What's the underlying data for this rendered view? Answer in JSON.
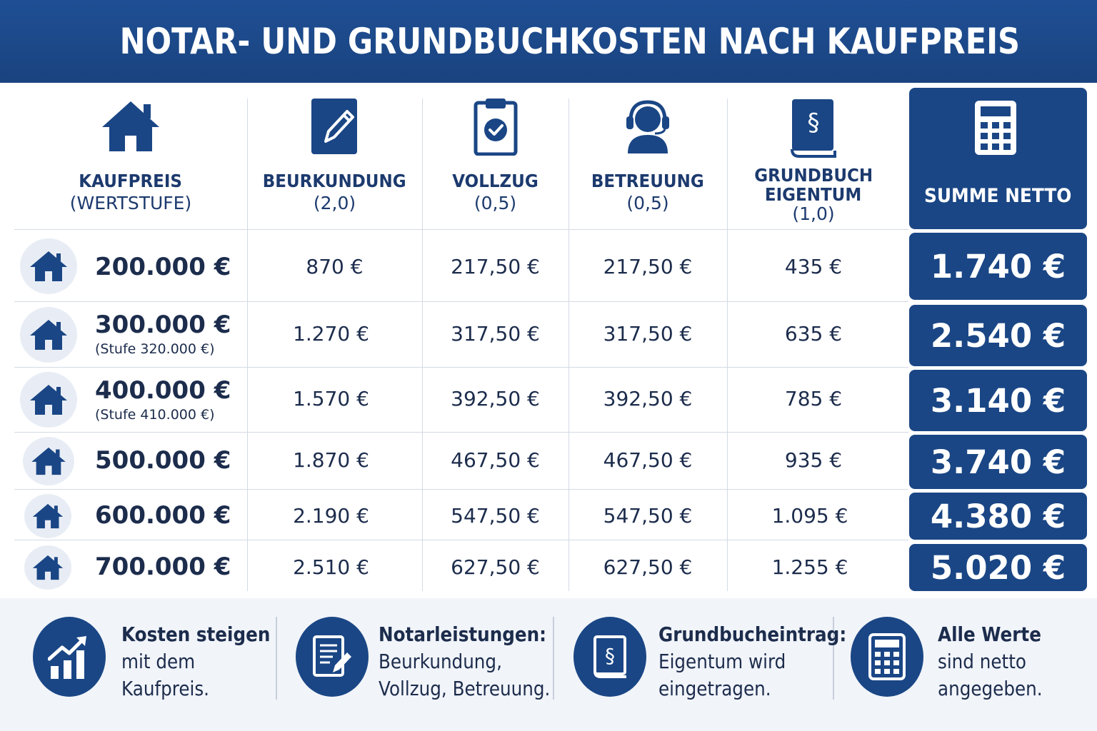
{
  "title": "NOTAR- UND GRUNDBUCHKOSTEN NACH KAUFPREIS",
  "colors": {
    "primary": "#1a4685",
    "header_bg": "#1f4f94",
    "row_icon_bg": "#e8edf5",
    "footer_bg": "#f1f4f9"
  },
  "headers": {
    "kaufpreis": {
      "icon": "house-icon",
      "label": "KAUFPREIS",
      "sub": "(WERTSTUFE)"
    },
    "beurkundung": {
      "icon": "document-pen-icon",
      "label": "BEURKUNDUNG",
      "sub": "(2,0)"
    },
    "vollzug": {
      "icon": "clipboard-check-icon",
      "label": "VOLLZUG",
      "sub": "(0,5)"
    },
    "betreuung": {
      "icon": "headset-person-icon",
      "label": "BETREUUNG",
      "sub": "(0,5)"
    },
    "grundbuch": {
      "icon": "law-book-icon",
      "label1": "GRUNDBUCH",
      "label2": "EIGENTUM",
      "sub": "(1,0)"
    },
    "summe": {
      "icon": "calculator-icon",
      "label": "SUMME NETTO"
    }
  },
  "rows": [
    {
      "price": "200.000 €",
      "stufe": "",
      "beurkundung": "870 €",
      "vollzug": "217,50 €",
      "betreuung": "217,50 €",
      "grundbuch": "435 €",
      "summe": "1.740 €"
    },
    {
      "price": "300.000 €",
      "stufe": "(Stufe 320.000 €)",
      "beurkundung": "1.270 €",
      "vollzug": "317,50 €",
      "betreuung": "317,50 €",
      "grundbuch": "635 €",
      "summe": "2.540 €"
    },
    {
      "price": "400.000 €",
      "stufe": "(Stufe 410.000 €)",
      "beurkundung": "1.570 €",
      "vollzug": "392,50 €",
      "betreuung": "392,50 €",
      "grundbuch": "785 €",
      "summe": "3.140 €"
    },
    {
      "price": "500.000 €",
      "stufe": "",
      "beurkundung": "1.870 €",
      "vollzug": "467,50 €",
      "betreuung": "467,50 €",
      "grundbuch": "935 €",
      "summe": "3.740 €"
    },
    {
      "price": "600.000 €",
      "stufe": "",
      "beurkundung": "2.190 €",
      "vollzug": "547,50 €",
      "betreuung": "547,50 €",
      "grundbuch": "1.095 €",
      "summe": "4.380 €"
    },
    {
      "price": "700.000 €",
      "stufe": "",
      "beurkundung": "2.510 €",
      "vollzug": "627,50 €",
      "betreuung": "627,50 €",
      "grundbuch": "1.255 €",
      "summe": "5.020 €"
    }
  ],
  "footer": [
    {
      "icon": "rising-chart-icon",
      "bold": "Kosten steigen",
      "line1": "mit dem",
      "line2": "Kaufpreis."
    },
    {
      "icon": "document-pen-icon",
      "bold": "Notarleistungen:",
      "line1": "Beurkundung,",
      "line2": "Vollzug, Betreuung."
    },
    {
      "icon": "law-book-icon",
      "bold": "Grundbucheintrag:",
      "line1": "Eigentum wird",
      "line2": "eingetragen."
    },
    {
      "icon": "calculator-icon",
      "bold": "Alle Werte",
      "line1": "sind netto",
      "line2": "angegeben."
    }
  ]
}
